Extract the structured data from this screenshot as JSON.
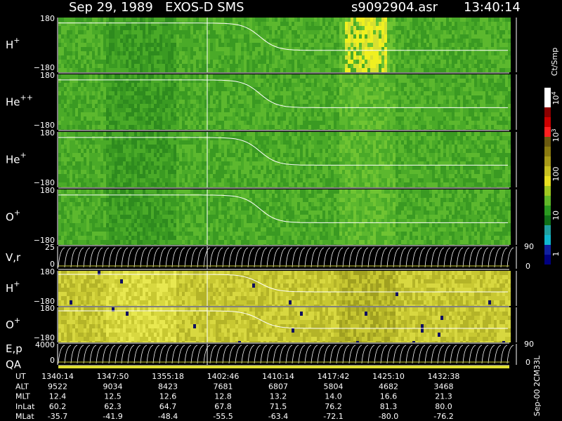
{
  "header": {
    "title": "Sep 29, 1989   EXOS-D SMS",
    "file": "s9092904.asr",
    "time": "13:40:14"
  },
  "panels": [
    {
      "label": {
        "base": "H",
        "sup": "+"
      },
      "top": "180",
      "bottom": "−180"
    },
    {
      "label": {
        "base": "He",
        "sup": "++"
      },
      "top": "180",
      "bottom": "−180"
    },
    {
      "label": {
        "base": "He",
        "sup": "+"
      },
      "top": "180",
      "bottom": "−180"
    },
    {
      "label": {
        "base": "O",
        "sup": "+"
      },
      "top": "180",
      "bottom": "−180"
    },
    {
      "label": {
        "base": "V,r"
      },
      "top": "25",
      "bottom": "0",
      "right_top": "90",
      "right_bottom": "0"
    },
    {
      "label": {
        "base": "H",
        "sup": "+"
      },
      "top": "180",
      "bottom": "−180"
    },
    {
      "label": {
        "base": "O",
        "sup": "+"
      },
      "top": "180",
      "bottom": "−180"
    },
    {
      "label": {
        "base": "E,p"
      },
      "label2": "QA",
      "top": "4000",
      "bottom": "0",
      "right_top": "90",
      "right_bottom": "0"
    }
  ],
  "table": {
    "rows": [
      {
        "label": "UT",
        "values": [
          "1340:14",
          "1347:50",
          "1355:18",
          "1402:46",
          "1410:14",
          "1417:42",
          "1425:10",
          "1432:38"
        ]
      },
      {
        "label": "ALT",
        "values": [
          "9522",
          "9034",
          "8423",
          "7681",
          "6807",
          "5804",
          "4682",
          "3468"
        ]
      },
      {
        "label": "MLT",
        "values": [
          "12.4",
          "12.5",
          "12.6",
          "12.8",
          "13.2",
          "14.0",
          "16.6",
          "21.3"
        ]
      },
      {
        "label": "InLat",
        "values": [
          "60.2",
          "62.3",
          "64.7",
          "67.8",
          "71.5",
          "76.2",
          "81.3",
          "80.0"
        ]
      },
      {
        "label": "MLat",
        "values": [
          "-35.7",
          "-41.9",
          "-48.4",
          "-55.5",
          "-63.4",
          "-72.1",
          "-80.0",
          "-76.2"
        ]
      }
    ]
  },
  "colorbar": {
    "unit": "Ct/Smp",
    "ticks": [
      {
        "base": "10",
        "sup": "4"
      },
      {
        "base": "10",
        "sup": "3"
      },
      {
        "base": "100"
      },
      {
        "base": "10"
      },
      {
        "base": "1"
      }
    ]
  },
  "footer": "Sep-00 2CM33L"
}
